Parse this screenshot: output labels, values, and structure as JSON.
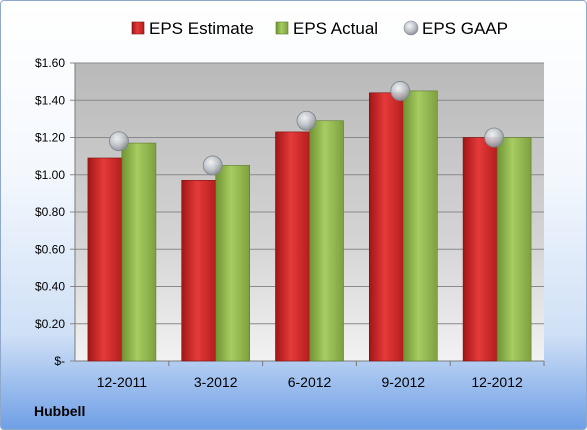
{
  "chart_data": {
    "type": "bar",
    "categories": [
      "12-2011",
      "3-2012",
      "6-2012",
      "9-2012",
      "12-2012"
    ],
    "series": [
      {
        "name": "EPS Estimate",
        "kind": "bar",
        "values": [
          1.09,
          0.97,
          1.23,
          1.44,
          1.2
        ]
      },
      {
        "name": "EPS Actual",
        "kind": "bar",
        "values": [
          1.17,
          1.05,
          1.29,
          1.45,
          1.2
        ]
      },
      {
        "name": "EPS GAAP",
        "kind": "marker",
        "values": [
          1.18,
          1.05,
          1.29,
          1.45,
          1.2
        ]
      }
    ],
    "yticks": [
      "$-",
      "$0.20",
      "$0.40",
      "$0.60",
      "$0.80",
      "$1.00",
      "$1.20",
      "$1.40",
      "$1.60"
    ],
    "ylim": [
      0,
      1.6
    ],
    "grid": true,
    "legend_position": "top",
    "colors": {
      "estimate": "#d42a2a",
      "actual": "#8cb34a",
      "gaap": "#c0c4cc"
    }
  },
  "company": "Hubbell"
}
